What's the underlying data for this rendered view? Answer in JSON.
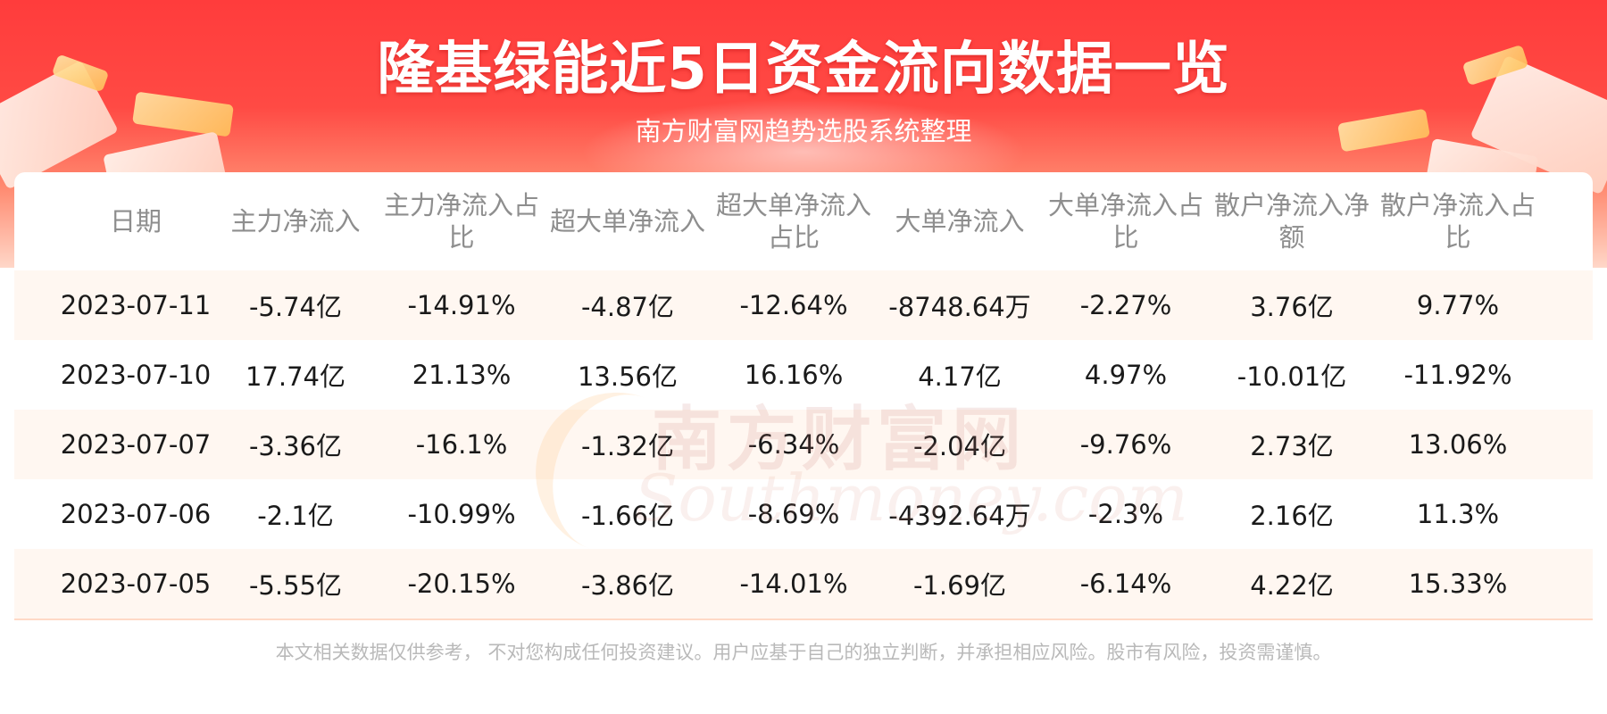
{
  "header": {
    "title": "隆基绿能近5日资金流向数据一览",
    "subtitle": "南方财富网趋势选股系统整理"
  },
  "table": {
    "columns": [
      "日期",
      "主力净流入",
      "主力净流入占比",
      "超大单净流入",
      "超大单净流入占比",
      "大单净流入",
      "大单净流入占比",
      "散户净流入净额",
      "散户净流入占比"
    ],
    "rows": [
      [
        "2023-07-11",
        "-5.74亿",
        "-14.91%",
        "-4.87亿",
        "-12.64%",
        "-8748.64万",
        "-2.27%",
        "3.76亿",
        "9.77%"
      ],
      [
        "2023-07-10",
        "17.74亿",
        "21.13%",
        "13.56亿",
        "16.16%",
        "4.17亿",
        "4.97%",
        "-10.01亿",
        "-11.92%"
      ],
      [
        "2023-07-07",
        "-3.36亿",
        "-16.1%",
        "-1.32亿",
        "-6.34%",
        "-2.04亿",
        "-9.76%",
        "2.73亿",
        "13.06%"
      ],
      [
        "2023-07-06",
        "-2.1亿",
        "-10.99%",
        "-1.66亿",
        "-8.69%",
        "-4392.64万",
        "-2.3%",
        "2.16亿",
        "11.3%"
      ],
      [
        "2023-07-05",
        "-5.55亿",
        "-20.15%",
        "-3.86亿",
        "-14.01%",
        "-1.69亿",
        "-6.14%",
        "4.22亿",
        "15.33%"
      ]
    ]
  },
  "watermark": {
    "cn": "南方财富网",
    "en": "Southmoney.com"
  },
  "footer": {
    "disclaimer": "本文相关数据仅供参考， 不对您构成任何投资建议。用户应基于自己的独立判断，并承担相应风险。股市有风险，投资需谨慎。"
  },
  "colors": {
    "banner_red": "#ff3c3c",
    "row_alt": "#fff7f1",
    "header_text": "#8e8e8e",
    "footer_text": "#b9b9b9"
  }
}
